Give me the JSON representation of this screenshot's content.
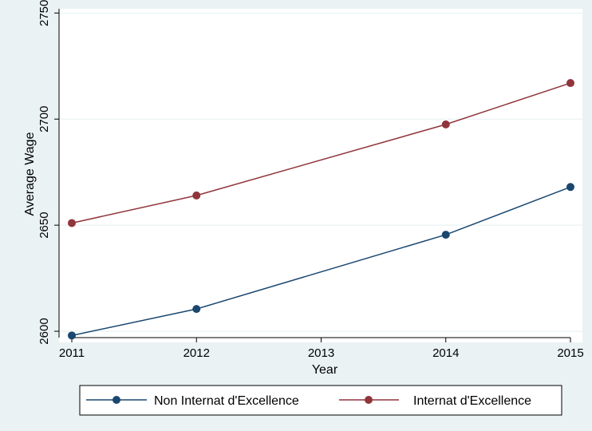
{
  "chart_data": {
    "type": "line",
    "title": "",
    "xlabel": "Year",
    "ylabel": "Average Wage",
    "x": [
      2011,
      2012,
      2014,
      2015
    ],
    "xticks": [
      "2011",
      "2012",
      "2013",
      "2014",
      "2015"
    ],
    "xlim": [
      2011,
      2015
    ],
    "yticks": [
      "2600",
      "2650",
      "2700",
      "2750"
    ],
    "ylim": [
      2597,
      2752
    ],
    "grid": true,
    "legend_position": "bottom",
    "series": [
      {
        "name": "Non Internat d'Excellence",
        "values": [
          2598,
          2610.5,
          2645.5,
          2668
        ],
        "color": "#1a476f"
      },
      {
        "name": "Internat d'Excellence",
        "values": [
          2651,
          2664,
          2697.5,
          2717
        ],
        "color": "#90353b"
      }
    ]
  },
  "colors": {
    "background": "#eaf2f3",
    "plot_background": "#ffffff",
    "grid": "#eaf2f3"
  }
}
